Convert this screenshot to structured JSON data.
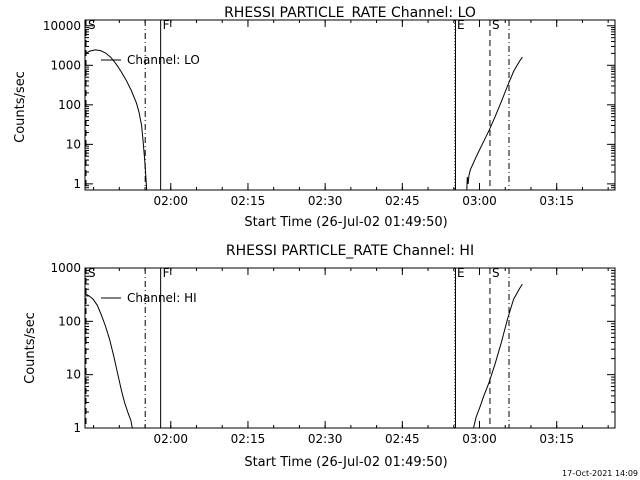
{
  "footer": {
    "timestamp": "17-Oct-2021 14:09"
  },
  "chart_data": [
    {
      "type": "line",
      "title": "RHESSI PARTICLE_RATE Channel: LO",
      "xlabel": "Start Time (26-Jul-02 01:49:50)",
      "ylabel": "Counts/sec",
      "yscale": "log",
      "xlim_min": [
        -6.5,
        96.5
      ],
      "ylim": [
        0.7,
        14000
      ],
      "x_ticks": [
        {
          "label": "02:00",
          "min": 10.17
        },
        {
          "label": "02:15",
          "min": 25.17
        },
        {
          "label": "02:30",
          "min": 40.17
        },
        {
          "label": "02:45",
          "min": 55.17
        },
        {
          "label": "03:00",
          "min": 70.17
        },
        {
          "label": "03:15",
          "min": 85.17
        }
      ],
      "y_ticks": [
        {
          "label": "1",
          "v": 1
        },
        {
          "label": "10",
          "v": 10
        },
        {
          "label": "100",
          "v": 100
        },
        {
          "label": "1000",
          "v": 1000
        },
        {
          "label": "10000",
          "v": 10000
        }
      ],
      "legend": "Channel: LO",
      "event_lines": [
        {
          "label": "S",
          "min": -6.5,
          "style": "dashed"
        },
        {
          "label": "",
          "min": 5.2,
          "style": "dashdot"
        },
        {
          "label": "F",
          "min": 8.2,
          "style": "solid"
        },
        {
          "label": "E",
          "min": 65.4,
          "style": "dotted"
        },
        {
          "label": "",
          "min": 65.5,
          "style": "solid"
        },
        {
          "label": "S",
          "min": 72.2,
          "style": "dashed"
        },
        {
          "label": "",
          "min": 75.9,
          "style": "dashdot"
        }
      ],
      "series": [
        {
          "name": "LO",
          "segments": [
            [
              [
                -6.5,
                2000
              ],
              [
                -5.5,
                2300
              ],
              [
                -4.5,
                2450
              ],
              [
                -3.5,
                2350
              ],
              [
                -2.5,
                2050
              ],
              [
                -1.5,
                1600
              ],
              [
                -0.5,
                1100
              ],
              [
                0.5,
                700
              ],
              [
                1.5,
                420
              ],
              [
                2.5,
                230
              ],
              [
                3.5,
                110
              ],
              [
                4.0,
                65
              ],
              [
                4.5,
                30
              ],
              [
                4.8,
                12
              ],
              [
                5.1,
                4
              ],
              [
                5.4,
                1.1
              ],
              [
                5.5,
                0.7
              ]
            ],
            [
              [
                67.7,
                0.7
              ],
              [
                67.8,
                1.5
              ],
              [
                67.95,
                1.0
              ],
              [
                68.1,
                1.6
              ],
              [
                68.4,
                2.3
              ],
              [
                68.8,
                3.0
              ],
              [
                69.4,
                4.5
              ],
              [
                70.1,
                7
              ],
              [
                71.0,
                12
              ],
              [
                72.0,
                22
              ],
              [
                73.2,
                50
              ],
              [
                74.4,
                120
              ],
              [
                75.6,
                300
              ],
              [
                76.8,
                700
              ],
              [
                78.0,
                1300
              ],
              [
                78.5,
                1600
              ]
            ]
          ]
        }
      ]
    },
    {
      "type": "line",
      "title": "RHESSI PARTICLE_RATE Channel: HI",
      "xlabel": "Start Time (26-Jul-02 01:49:50)",
      "ylabel": "Counts/sec",
      "yscale": "log",
      "xlim_min": [
        -6.5,
        96.5
      ],
      "ylim": [
        1,
        1000
      ],
      "x_ticks": [
        {
          "label": "02:00",
          "min": 10.17
        },
        {
          "label": "02:15",
          "min": 25.17
        },
        {
          "label": "02:30",
          "min": 40.17
        },
        {
          "label": "02:45",
          "min": 55.17
        },
        {
          "label": "03:00",
          "min": 70.17
        },
        {
          "label": "03:15",
          "min": 85.17
        }
      ],
      "y_ticks": [
        {
          "label": "1",
          "v": 1
        },
        {
          "label": "10",
          "v": 10
        },
        {
          "label": "100",
          "v": 100
        },
        {
          "label": "1000",
          "v": 1000
        }
      ],
      "legend": "Channel: HI",
      "event_lines": [
        {
          "label": "S",
          "min": -6.5,
          "style": "dashed"
        },
        {
          "label": "",
          "min": 5.2,
          "style": "dashdot"
        },
        {
          "label": "F",
          "min": 8.2,
          "style": "solid"
        },
        {
          "label": "E",
          "min": 65.4,
          "style": "dotted"
        },
        {
          "label": "",
          "min": 65.5,
          "style": "solid"
        },
        {
          "label": "S",
          "min": 72.2,
          "style": "dashed"
        },
        {
          "label": "",
          "min": 75.9,
          "style": "dashdot"
        }
      ],
      "series": [
        {
          "name": "HI",
          "segments": [
            [
              [
                -6.5,
                330
              ],
              [
                -5.7,
                300
              ],
              [
                -4.9,
                260
              ],
              [
                -4.1,
                200
              ],
              [
                -3.3,
                130
              ],
              [
                -2.5,
                80
              ],
              [
                -1.7,
                45
              ],
              [
                -0.9,
                22
              ],
              [
                -0.1,
                10
              ],
              [
                0.6,
                5
              ],
              [
                1.2,
                3
              ],
              [
                1.8,
                2
              ],
              [
                2.4,
                1.4
              ],
              [
                2.7,
                1.0
              ]
            ],
            [
              [
                69.0,
                1.0
              ],
              [
                69.5,
                1.6
              ],
              [
                70.2,
                2.4
              ],
              [
                71.0,
                4
              ],
              [
                72.0,
                7
              ],
              [
                73.2,
                16
              ],
              [
                74.4,
                40
              ],
              [
                75.6,
                110
              ],
              [
                76.8,
                260
              ],
              [
                78.0,
                420
              ],
              [
                78.5,
                500
              ]
            ]
          ]
        }
      ]
    }
  ]
}
